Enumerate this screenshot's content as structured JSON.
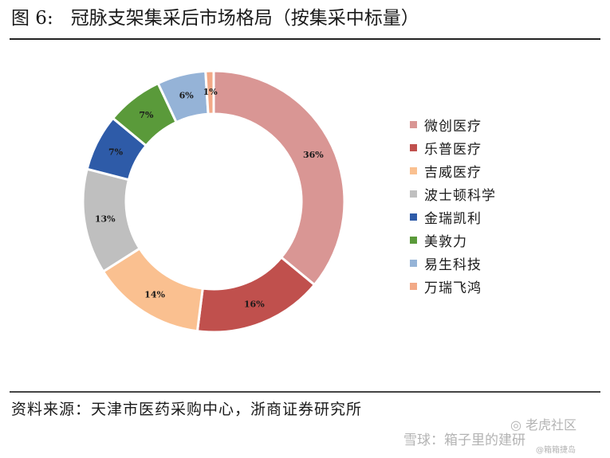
{
  "figure": {
    "number_label": "图 6:",
    "title": "冠脉支架集采后市场格局（按集采中标量）",
    "source": "资料来源：天津市医药采购中心，浙商证券研究所"
  },
  "watermarks": {
    "community": "◎ 老虎社区",
    "xueqiu": "雪球：箱子里的建研",
    "handle": "@箱箱捷岛"
  },
  "chart_data": {
    "type": "donut",
    "categories": [
      "微创医疗",
      "乐普医疗",
      "吉威医疗",
      "波士顿科学",
      "金瑞凯利",
      "美敦力",
      "易生科技",
      "万瑞飞鸿"
    ],
    "values": [
      36,
      16,
      14,
      13,
      7,
      7,
      6,
      1
    ],
    "value_labels": [
      "36%",
      "16%",
      "14%",
      "13%",
      "7%",
      "7%",
      "6%",
      "1%"
    ],
    "colors": [
      "#d99694",
      "#c0504d",
      "#fac090",
      "#bfbfbf",
      "#2e5ba8",
      "#5a9a3a",
      "#95b3d7",
      "#f2a987"
    ],
    "start_angle": "12 o'clock",
    "direction": "clockwise",
    "legend_position": "right"
  }
}
